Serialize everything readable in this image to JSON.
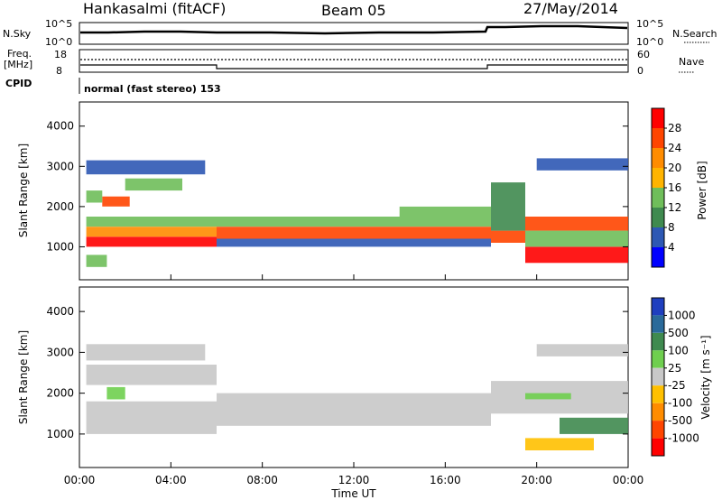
{
  "header": {
    "station": "Hankasalmi (fitACF)",
    "beam": "Beam 05",
    "date": "27/May/2014"
  },
  "strips": {
    "nsky_label": "N.Sky",
    "nsky_ticks": [
      "10^5",
      "10^0"
    ],
    "nsearch_label": "N.Search",
    "nsearch_ticks": [
      "10^5",
      "10^0"
    ],
    "freq_label_1": "Freq.",
    "freq_label_2": "[MHz]",
    "freq_ticks": [
      "18",
      "8"
    ],
    "nave_label": "Nave",
    "nave_ticks": [
      "60",
      "0"
    ],
    "cpid_label": "CPID",
    "cpid_text": "normal (fast stereo) 153"
  },
  "chart_data": [
    {
      "type": "heatmap",
      "panel": "power",
      "ylabel": "Slant Range [km]",
      "ylim": [
        180,
        4600
      ],
      "y_ticks": [
        1000,
        2000,
        3000,
        4000
      ],
      "xlim": [
        0,
        24
      ],
      "x_tick_labels": [
        "00:00",
        "04:00",
        "08:00",
        "12:00",
        "16:00",
        "20:00",
        "00:00"
      ],
      "colorbar": {
        "label": "Power [dB]",
        "ticks": [
          "4",
          "8",
          "12",
          "16",
          "20",
          "24",
          "28"
        ],
        "levels": [
          {
            "from": 0,
            "to": 4,
            "color": "#0000ff"
          },
          {
            "from": 4,
            "to": 8,
            "color": "#2d58b4"
          },
          {
            "from": 8,
            "to": 12,
            "color": "#3f8a4f"
          },
          {
            "from": 12,
            "to": 16,
            "color": "#6fbe5a"
          },
          {
            "from": 16,
            "to": 20,
            "color": "#ffb400"
          },
          {
            "from": 20,
            "to": 24,
            "color": "#ff8c00"
          },
          {
            "from": 24,
            "to": 28,
            "color": "#ff4500"
          },
          {
            "from": 28,
            "to": 32,
            "color": "#ff0000"
          }
        ]
      },
      "bands": [
        {
          "t0": 0.3,
          "t1": 6.0,
          "r0": 1000,
          "r1": 1250,
          "value": 29
        },
        {
          "t0": 0.3,
          "t1": 6.0,
          "r0": 1250,
          "r1": 1500,
          "value": 22
        },
        {
          "t0": 0.3,
          "t1": 6.0,
          "r0": 1500,
          "r1": 1750,
          "value": 14
        },
        {
          "t0": 1.0,
          "t1": 2.2,
          "r0": 2000,
          "r1": 2250,
          "value": 26
        },
        {
          "t0": 0.3,
          "t1": 1.0,
          "r0": 2100,
          "r1": 2400,
          "value": 13
        },
        {
          "t0": 2.0,
          "t1": 4.5,
          "r0": 2400,
          "r1": 2700,
          "value": 12
        },
        {
          "t0": 0.3,
          "t1": 5.5,
          "r0": 2800,
          "r1": 3150,
          "value": 7
        },
        {
          "t0": 0.3,
          "t1": 1.2,
          "r0": 500,
          "r1": 800,
          "value": 14
        },
        {
          "t0": 6.0,
          "t1": 18.0,
          "r0": 1200,
          "r1": 1500,
          "value": 24
        },
        {
          "t0": 6.0,
          "t1": 18.0,
          "r0": 1500,
          "r1": 1750,
          "value": 13
        },
        {
          "t0": 14.0,
          "t1": 18.0,
          "r0": 1750,
          "r1": 2000,
          "value": 12
        },
        {
          "t0": 6.0,
          "t1": 18.0,
          "r0": 1000,
          "r1": 1200,
          "value": 7
        },
        {
          "t0": 18.0,
          "t1": 19.5,
          "r0": 1100,
          "r1": 1400,
          "value": 27
        },
        {
          "t0": 18.0,
          "t1": 19.5,
          "r0": 1400,
          "r1": 2600,
          "value": 10
        },
        {
          "t0": 19.5,
          "t1": 24.0,
          "r0": 600,
          "r1": 1000,
          "value": 29
        },
        {
          "t0": 19.5,
          "t1": 24.0,
          "r0": 1400,
          "r1": 1750,
          "value": 24
        },
        {
          "t0": 19.5,
          "t1": 24.0,
          "r0": 1000,
          "r1": 1400,
          "value": 14
        },
        {
          "t0": 20.0,
          "t1": 24.0,
          "r0": 2900,
          "r1": 3200,
          "value": 6
        }
      ]
    },
    {
      "type": "heatmap",
      "panel": "velocity",
      "ylabel": "Slant Range [km]",
      "ylim": [
        180,
        4600
      ],
      "y_ticks": [
        1000,
        2000,
        3000,
        4000
      ],
      "xlim": [
        0,
        24
      ],
      "xlabel": "Time UT",
      "x_tick_labels": [
        "00:00",
        "04:00",
        "08:00",
        "12:00",
        "16:00",
        "20:00",
        "00:00"
      ],
      "colorbar": {
        "label": "Velocity [m s⁻¹]",
        "ticks": [
          "1000",
          "500",
          "100",
          "25",
          "-25",
          "-100",
          "-500",
          "-1000"
        ],
        "levels": [
          {
            "from": 1000,
            "to": 1250,
            "color": "#1f3fbf"
          },
          {
            "from": 500,
            "to": 1000,
            "color": "#2a6a9a"
          },
          {
            "from": 100,
            "to": 500,
            "color": "#3f8a4f"
          },
          {
            "from": 25,
            "to": 100,
            "color": "#6fcf4f"
          },
          {
            "from": -25,
            "to": 25,
            "color": "#c8c8c8"
          },
          {
            "from": -100,
            "to": -25,
            "color": "#ffc000"
          },
          {
            "from": -500,
            "to": -100,
            "color": "#ff8c00"
          },
          {
            "from": -1000,
            "to": -500,
            "color": "#ff4500"
          },
          {
            "from": -1250,
            "to": -1000,
            "color": "#ff0000"
          }
        ]
      },
      "bands": [
        {
          "t0": 0.3,
          "t1": 6.0,
          "r0": 1000,
          "r1": 1800,
          "value": 0
        },
        {
          "t0": 6.0,
          "t1": 18.0,
          "r0": 1200,
          "r1": 2000,
          "value": 0
        },
        {
          "t0": 0.3,
          "t1": 6.0,
          "r0": 2200,
          "r1": 2700,
          "value": 0
        },
        {
          "t0": 1.2,
          "t1": 2.0,
          "r0": 1850,
          "r1": 2150,
          "value": 60
        },
        {
          "t0": 0.3,
          "t1": 5.5,
          "r0": 2800,
          "r1": 3200,
          "value": 0
        },
        {
          "t0": 18.0,
          "t1": 24.0,
          "r0": 1500,
          "r1": 2300,
          "value": 0
        },
        {
          "t0": 19.5,
          "t1": 21.5,
          "r0": 1850,
          "r1": 2000,
          "value": 60
        },
        {
          "t0": 21.0,
          "t1": 24.0,
          "r0": 1000,
          "r1": 1400,
          "value": 300
        },
        {
          "t0": 19.5,
          "t1": 22.5,
          "r0": 600,
          "r1": 900,
          "value": -60
        },
        {
          "t0": 20.0,
          "t1": 24.0,
          "r0": 2900,
          "r1": 3200,
          "value": 0
        }
      ]
    }
  ]
}
